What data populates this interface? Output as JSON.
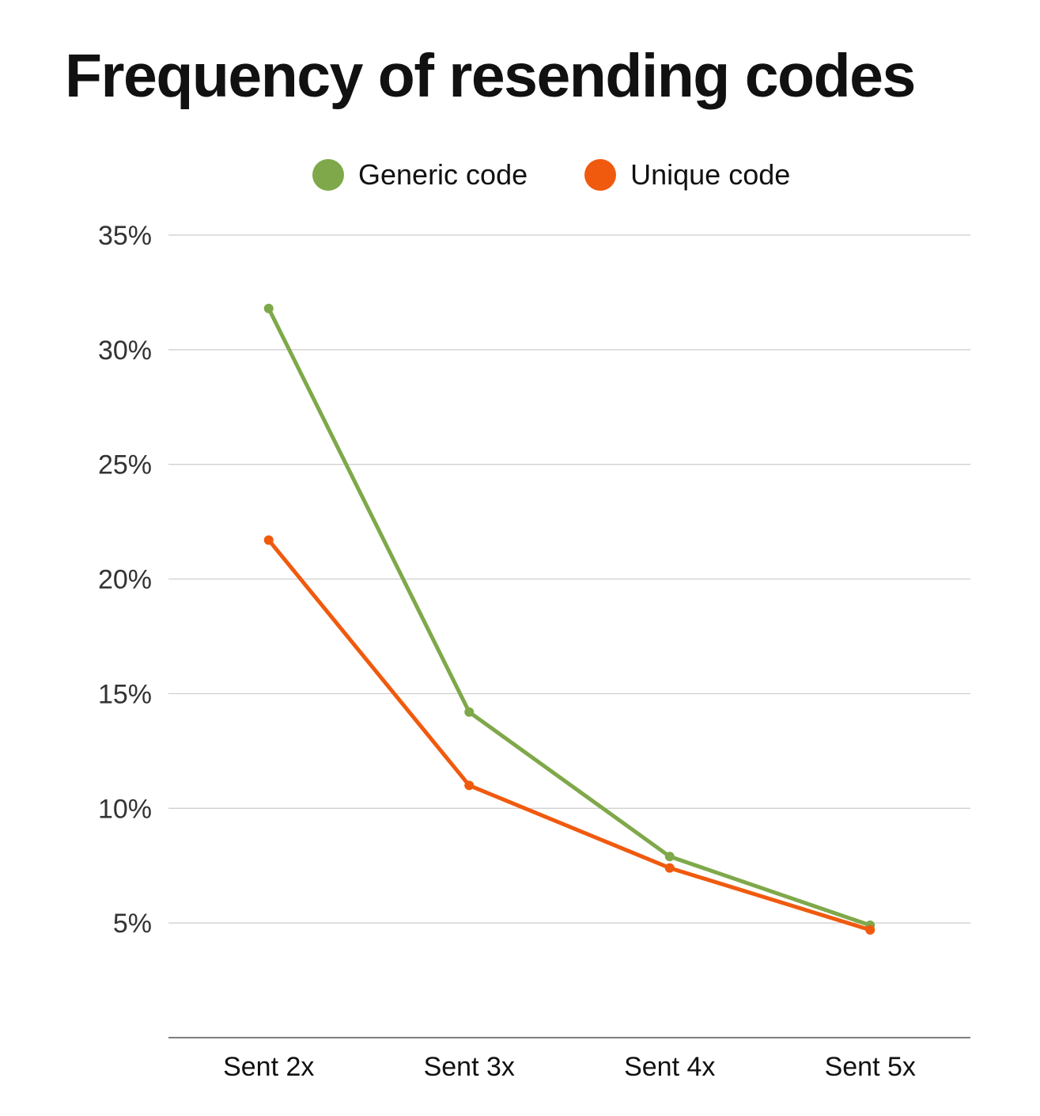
{
  "chart_data": {
    "type": "line",
    "title": "Frequency of resending codes",
    "categories": [
      "Sent 2x",
      "Sent 3x",
      "Sent 4x",
      "Sent 5x"
    ],
    "series": [
      {
        "name": "Generic code",
        "color": "#7fa84a",
        "values": [
          31.8,
          14.2,
          7.9,
          4.9
        ]
      },
      {
        "name": "Unique code",
        "color": "#f05a0e",
        "values": [
          21.7,
          11.0,
          7.4,
          4.7
        ]
      }
    ],
    "y_ticks": [
      {
        "value": 5,
        "label": "5%"
      },
      {
        "value": 10,
        "label": "10%"
      },
      {
        "value": 15,
        "label": "15%"
      },
      {
        "value": 20,
        "label": "20%"
      },
      {
        "value": 25,
        "label": "25%"
      },
      {
        "value": 30,
        "label": "30%"
      },
      {
        "value": 35,
        "label": "35%"
      }
    ],
    "ylim": [
      0,
      35
    ],
    "legend_position": "top-center",
    "grid": true,
    "xlabel": "",
    "ylabel": ""
  }
}
